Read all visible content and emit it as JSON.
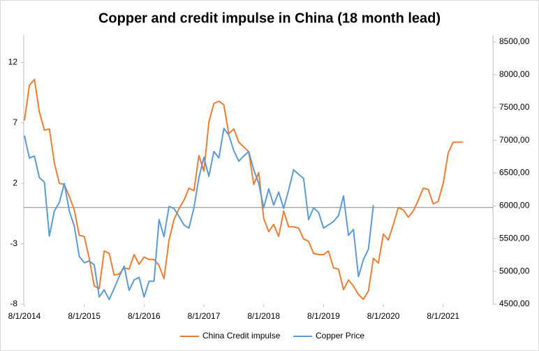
{
  "chart_data": {
    "type": "line",
    "title": "Copper and credit impulse in China (18 month lead)",
    "categories": [
      "8/1/2014",
      null,
      null,
      null,
      null,
      null,
      null,
      null,
      null,
      null,
      null,
      null,
      "8/1/2015",
      null,
      null,
      null,
      null,
      null,
      null,
      null,
      null,
      null,
      null,
      null,
      "8/1/2016",
      null,
      null,
      null,
      null,
      null,
      null,
      null,
      null,
      null,
      null,
      null,
      "8/1/2017",
      null,
      null,
      null,
      null,
      null,
      null,
      null,
      null,
      null,
      null,
      null,
      "8/1/2018",
      null,
      null,
      null,
      null,
      null,
      null,
      null,
      null,
      null,
      null,
      null,
      "8/1/2019",
      null,
      null,
      null,
      null,
      null,
      null,
      null,
      null,
      null,
      null,
      null,
      "8/1/2020",
      null,
      null,
      null,
      null,
      null,
      null,
      null,
      null,
      null,
      null,
      null,
      "8/1/2021",
      null,
      null,
      null,
      null,
      null,
      null,
      null,
      null,
      null,
      null
    ],
    "series": [
      {
        "name": "China Credit impulse",
        "color": "#ed7d31",
        "axis": "y",
        "values": [
          7.2,
          10.1,
          10.6,
          7.9,
          6.4,
          6.5,
          3.7,
          2.0,
          1.9,
          0.9,
          -0.2,
          -2.3,
          -2.4,
          -4.2,
          -6.5,
          -6.7,
          -3.6,
          -3.8,
          -5.6,
          -5.5,
          -5.0,
          -5.1,
          -3.9,
          -4.7,
          -4.1,
          -4.3,
          -4.3,
          -4.8,
          -5.9,
          -2.7,
          -1.0,
          -0.1,
          0.6,
          1.6,
          1.4,
          4.3,
          3.0,
          7.1,
          8.6,
          8.8,
          8.5,
          6.1,
          6.5,
          5.4,
          5.0,
          4.6,
          1.9,
          2.9,
          -0.9,
          -2.0,
          -1.4,
          -2.4,
          -0.3,
          -1.6,
          -1.6,
          -1.7,
          -2.6,
          -2.8,
          -3.8,
          -3.9,
          -3.9,
          -3.6,
          -5.0,
          -5.1,
          -6.8,
          -6.0,
          -6.5,
          -7.2,
          -7.6,
          -6.9,
          -4.2,
          -4.6,
          -2.2,
          -2.7,
          -1.4,
          0.0,
          -0.2,
          -0.8,
          -0.3,
          0.6,
          1.6,
          1.5,
          0.3,
          0.5,
          2.0,
          4.5,
          5.4,
          5.4,
          5.4,
          null,
          null,
          null,
          null,
          null,
          null
        ]
      },
      {
        "name": "Copper Price",
        "color": "#5b9bd5",
        "axis": "y2",
        "values": [
          7070,
          6730,
          6760,
          6430,
          6360,
          5540,
          5920,
          6050,
          6340,
          5920,
          5690,
          5230,
          5130,
          5160,
          5100,
          4610,
          4720,
          4570,
          4740,
          4920,
          5080,
          4710,
          4870,
          4910,
          4610,
          4850,
          4850,
          5790,
          5530,
          5990,
          5960,
          5840,
          5710,
          5660,
          5970,
          6430,
          6740,
          6450,
          6830,
          6730,
          7180,
          7080,
          6840,
          6680,
          6760,
          6830,
          6550,
          6340,
          5970,
          6260,
          6010,
          6210,
          5960,
          6240,
          6550,
          6480,
          6420,
          5790,
          5970,
          5900,
          5660,
          5710,
          5760,
          5850,
          6150,
          5550,
          5640,
          4920,
          5180,
          5340,
          6010,
          null,
          null,
          null,
          null,
          null,
          null,
          null,
          null,
          null,
          null,
          null,
          null,
          null,
          null,
          null,
          null,
          null,
          null,
          null,
          null,
          null,
          null,
          null,
          null
        ]
      }
    ],
    "ylim": [
      -8,
      13.7
    ],
    "yticks": [
      -8,
      -3,
      2,
      7,
      12
    ],
    "y2lim": [
      4500,
      8500
    ],
    "y2ticks": [
      {
        "value": 4500,
        "label": "4500,00"
      },
      {
        "value": 5000,
        "label": "5000,00"
      },
      {
        "value": 5500,
        "label": "5500,00"
      },
      {
        "value": 6000,
        "label": "6000,00"
      },
      {
        "value": 6500,
        "label": "6500,00"
      },
      {
        "value": 7000,
        "label": "7000,00"
      },
      {
        "value": 7500,
        "label": "7500,00"
      },
      {
        "value": 8000,
        "label": "8000,00"
      },
      {
        "value": 8500,
        "label": "8500,00"
      }
    ],
    "legend": "bottom"
  }
}
